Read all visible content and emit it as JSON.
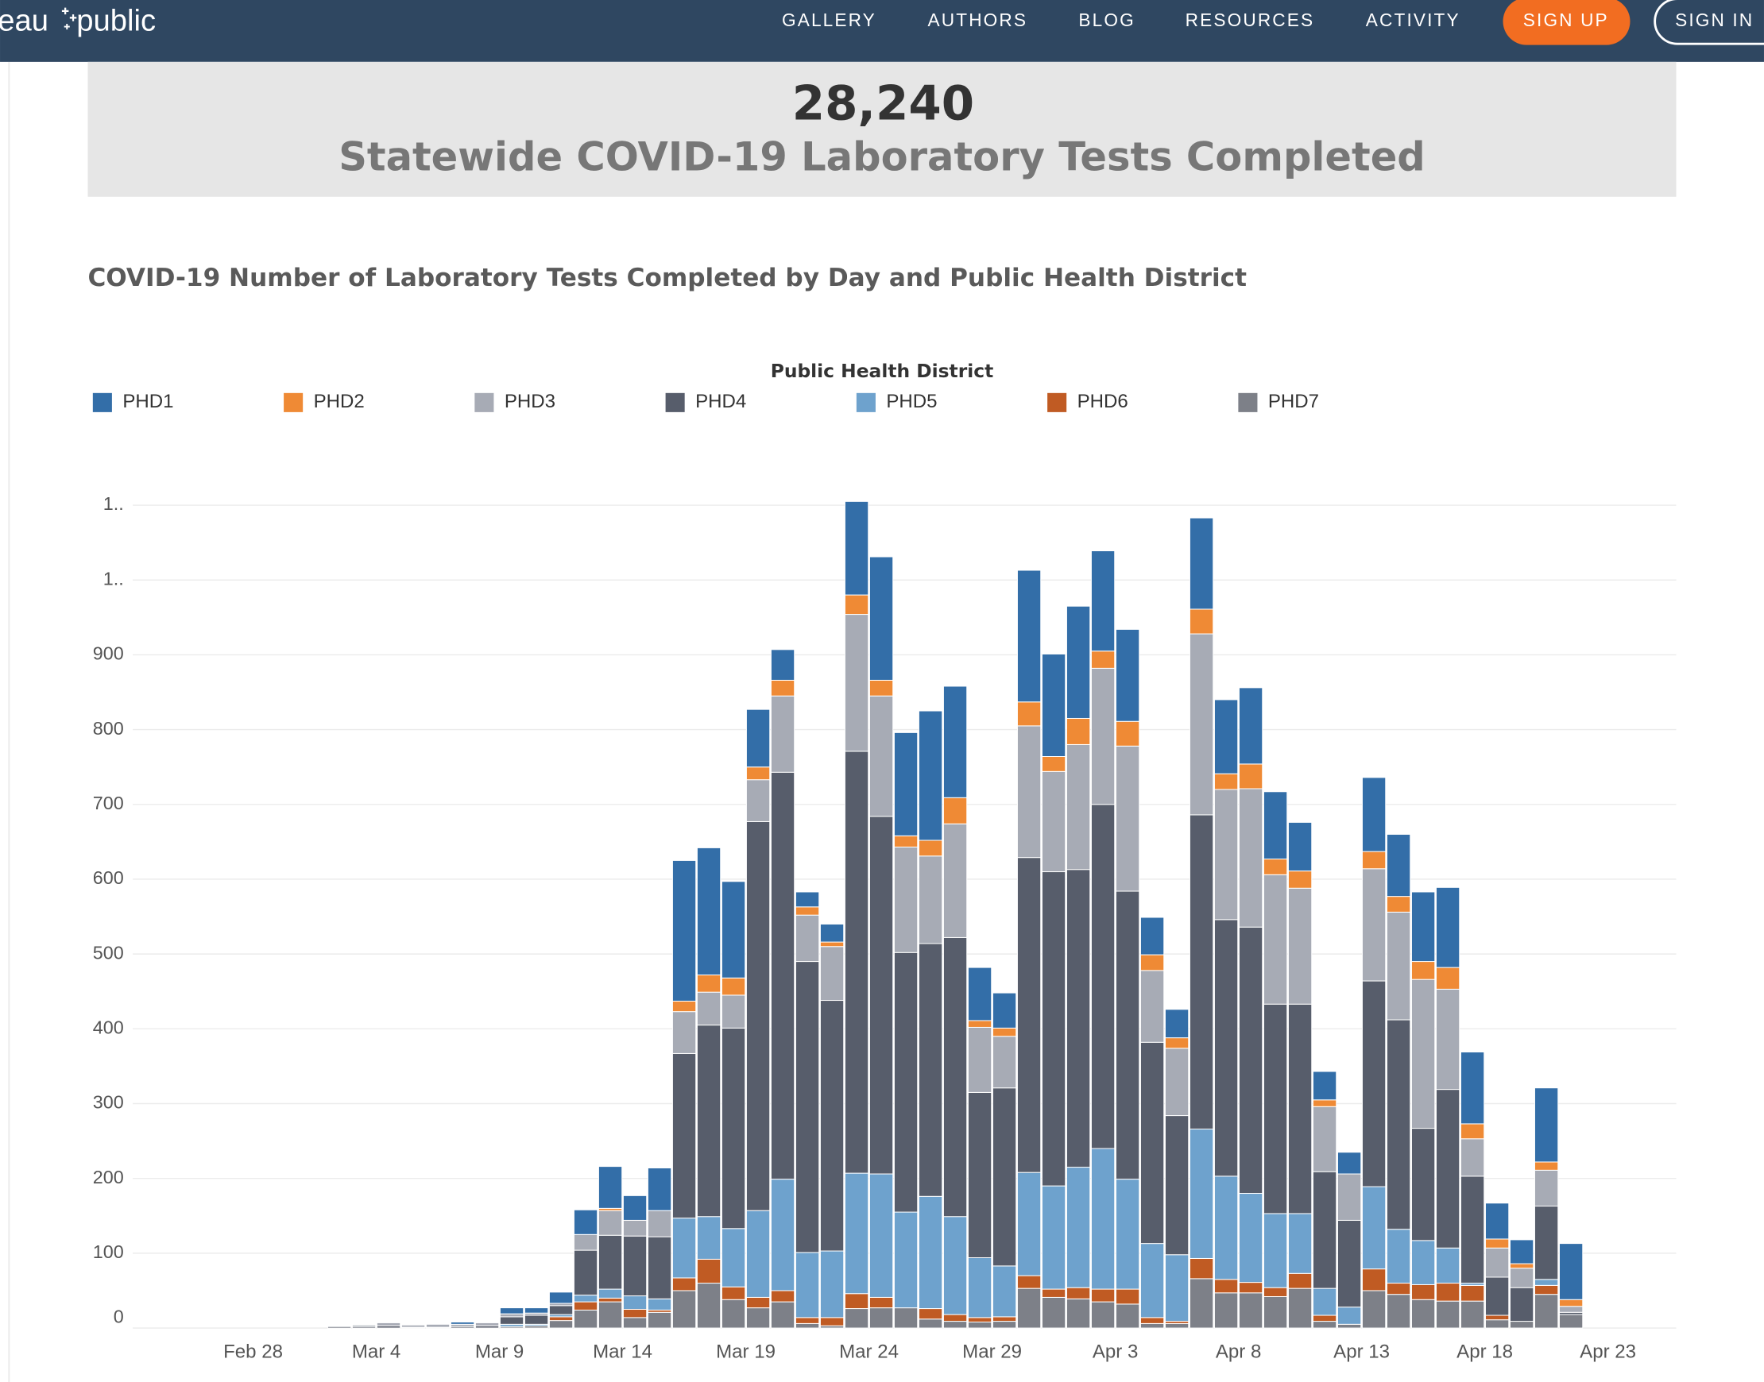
{
  "nav": {
    "logo": [
      "eau",
      "public"
    ],
    "links": [
      "GALLERY",
      "AUTHORS",
      "BLOG",
      "RESOURCES",
      "ACTIVITY"
    ],
    "sign_up": "SIGN UP",
    "sign_in": "SIGN IN"
  },
  "header": {
    "total": "28,240",
    "subtitle": "Statewide COVID-19 Laboratory Tests Completed"
  },
  "chart_data": {
    "type": "stacked_bar",
    "title": "COVID-19 Number of Laboratory Tests Completed by Day and Public Health District",
    "legend_title": "Public Health District",
    "categories": [
      null,
      null,
      null,
      null,
      null,
      "Feb 28",
      null,
      null,
      null,
      null,
      "Mar 4",
      null,
      null,
      null,
      null,
      "Mar 9",
      null,
      null,
      null,
      null,
      "Mar 14",
      null,
      null,
      null,
      null,
      "Mar 19",
      null,
      null,
      null,
      null,
      "Mar 24",
      null,
      null,
      null,
      null,
      "Mar 29",
      null,
      null,
      null,
      null,
      "Apr 3",
      null,
      null,
      null,
      null,
      "Apr 8",
      null,
      null,
      null,
      null,
      "Apr 13",
      null,
      null,
      null,
      null,
      "Apr 18",
      null,
      null,
      null,
      null,
      "Apr 23",
      null,
      null
    ],
    "ylim": [
      0,
      1150
    ],
    "yticks": [
      0,
      100,
      200,
      300,
      400,
      500,
      600,
      700,
      800,
      900,
      {
        "value": 1000,
        "label": "1.."
      },
      {
        "value": 1100,
        "label": "1.."
      }
    ],
    "grid": true,
    "series": [
      {
        "name": "PHD1",
        "color": "#336ea8",
        "values": [
          null,
          null,
          null,
          null,
          null,
          null,
          null,
          null,
          0,
          0,
          0,
          0,
          0,
          3,
          0,
          8,
          7,
          15,
          33,
          56,
          33,
          57,
          188,
          170,
          129,
          77,
          41,
          20,
          24,
          125,
          165,
          138,
          173,
          149,
          71,
          47,
          176,
          137,
          150,
          134,
          123,
          50,
          38,
          122,
          99,
          102,
          90,
          65,
          38,
          29,
          99,
          83,
          93,
          107,
          96,
          48,
          32,
          99,
          75,
          null,
          null,
          null,
          null
        ]
      },
      {
        "name": "PHD2",
        "color": "#ef8a35",
        "values": [
          null,
          null,
          null,
          null,
          null,
          null,
          null,
          null,
          0,
          0,
          0,
          0,
          0,
          0,
          0,
          0,
          0,
          0,
          0,
          3,
          0,
          0,
          14,
          23,
          23,
          17,
          21,
          11,
          6,
          26,
          21,
          15,
          21,
          35,
          9,
          11,
          32,
          20,
          35,
          23,
          33,
          21,
          14,
          33,
          21,
          33,
          21,
          23,
          9,
          0,
          23,
          21,
          24,
          29,
          20,
          12,
          6,
          11,
          9,
          null,
          null,
          null,
          null
        ]
      },
      {
        "name": "PHD3",
        "color": "#a7abb5",
        "values": [
          null,
          null,
          null,
          null,
          null,
          null,
          null,
          null,
          1,
          2,
          4,
          3,
          4,
          3,
          4,
          4,
          3,
          3,
          21,
          33,
          21,
          35,
          56,
          44,
          44,
          56,
          102,
          62,
          72,
          183,
          161,
          141,
          117,
          152,
          87,
          69,
          176,
          134,
          167,
          182,
          194,
          96,
          90,
          242,
          174,
          185,
          173,
          155,
          87,
          62,
          150,
          144,
          199,
          134,
          50,
          39,
          26,
          48,
          8,
          null,
          null,
          null,
          null
        ]
      },
      {
        "name": "PHD4",
        "color": "#575d6b",
        "values": [
          null,
          null,
          null,
          null,
          null,
          null,
          null,
          null,
          2,
          2,
          3,
          1,
          1,
          2,
          3,
          10,
          12,
          12,
          60,
          72,
          80,
          83,
          220,
          256,
          268,
          520,
          544,
          389,
          335,
          564,
          478,
          347,
          338,
          373,
          221,
          238,
          421,
          420,
          398,
          460,
          385,
          269,
          186,
          420,
          343,
          356,
          280,
          280,
          156,
          116,
          275,
          280,
          150,
          212,
          143,
          51,
          45,
          98,
          3,
          null,
          null,
          null,
          null
        ]
      },
      {
        "name": "PHD5",
        "color": "#6ea2cd",
        "values": [
          null,
          null,
          null,
          null,
          null,
          null,
          null,
          null,
          0,
          0,
          0,
          0,
          0,
          0,
          0,
          3,
          2,
          3,
          9,
          12,
          18,
          15,
          80,
          57,
          78,
          116,
          149,
          87,
          89,
          161,
          165,
          128,
          150,
          131,
          80,
          68,
          138,
          138,
          161,
          188,
          147,
          99,
          89,
          173,
          138,
          119,
          99,
          80,
          36,
          23,
          110,
          72,
          59,
          47,
          3,
          0,
          0,
          8,
          0,
          null,
          null,
          null,
          null
        ]
      },
      {
        "name": "PHD6",
        "color": "#c05b23",
        "values": [
          null,
          null,
          null,
          null,
          null,
          null,
          null,
          null,
          0,
          0,
          0,
          0,
          0,
          0,
          0,
          0,
          0,
          5,
          11,
          5,
          11,
          3,
          17,
          32,
          17,
          14,
          15,
          8,
          11,
          20,
          14,
          0,
          14,
          9,
          6,
          6,
          17,
          11,
          15,
          17,
          20,
          8,
          3,
          27,
          18,
          14,
          12,
          20,
          8,
          0,
          29,
          15,
          20,
          24,
          21,
          6,
          0,
          12,
          0,
          null,
          null,
          null,
          null
        ]
      },
      {
        "name": "PHD7",
        "color": "#7d8088",
        "values": [
          null,
          null,
          null,
          null,
          null,
          null,
          null,
          null,
          0,
          0,
          0,
          0,
          0,
          0,
          0,
          2,
          3,
          10,
          24,
          35,
          14,
          21,
          50,
          60,
          38,
          27,
          35,
          6,
          3,
          26,
          27,
          27,
          12,
          9,
          8,
          9,
          53,
          41,
          39,
          35,
          32,
          6,
          6,
          66,
          47,
          47,
          42,
          53,
          9,
          5,
          50,
          45,
          38,
          36,
          36,
          11,
          9,
          45,
          18,
          null,
          null,
          null,
          null
        ]
      }
    ]
  }
}
